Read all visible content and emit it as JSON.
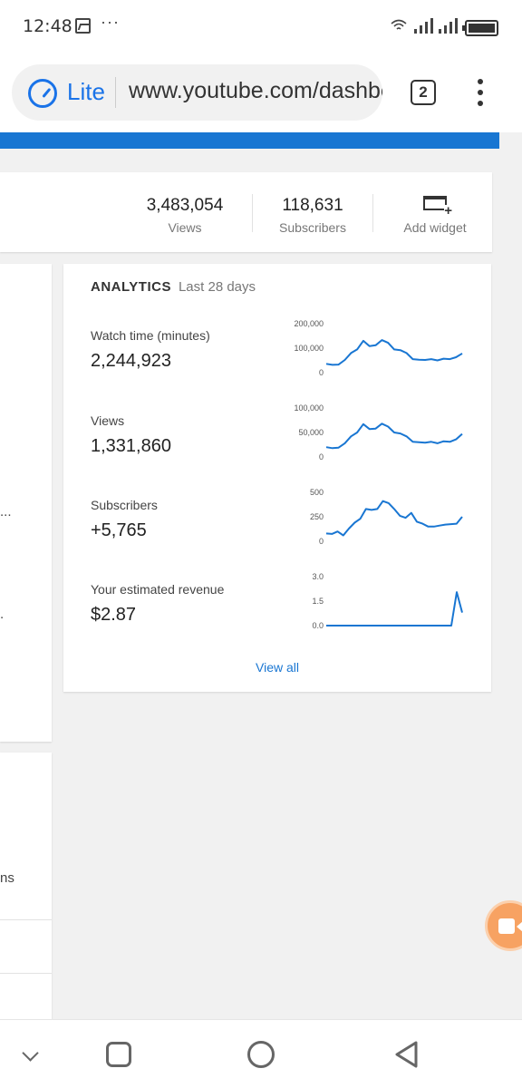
{
  "status_bar": {
    "time": "12:48",
    "more": "···",
    "icons": [
      "image-icon",
      "wifi-icon",
      "signal-icon",
      "signal-icon",
      "battery-icon"
    ]
  },
  "browser": {
    "lite_label": "Lite",
    "url": "www.youtube.com/dashboard",
    "tab_count": "2",
    "accent_color": "#1a73e8"
  },
  "stats": {
    "views": {
      "value": "3,483,054",
      "label": "Views"
    },
    "subscribers": {
      "value": "118,631",
      "label": "Subscribers"
    },
    "add_widget": {
      "label": "Add widget"
    }
  },
  "left_fragments": {
    "frag1": "...",
    "frag2": ".",
    "frag3": "ns"
  },
  "analytics": {
    "title": "ANALYTICS",
    "period": "Last 28 days",
    "view_all": "View all",
    "line_color": "#1976d2"
  },
  "chart_data": [
    {
      "type": "line",
      "title": "Watch time (minutes)",
      "value_label": "2,244,923",
      "ticks": [
        "200,000",
        "100,000",
        "0"
      ],
      "ylim": [
        0,
        200000
      ],
      "values": [
        36000,
        32000,
        33000,
        52000,
        80000,
        95000,
        130000,
        108000,
        112000,
        133000,
        122000,
        95000,
        92000,
        80000,
        55000,
        53000,
        52000,
        55000,
        50000,
        57000,
        55000,
        63000,
        78000
      ]
    },
    {
      "type": "line",
      "title": "Views",
      "value_label": "1,331,860",
      "ticks": [
        "100,000",
        "50,000",
        "0"
      ],
      "ylim": [
        0,
        100000
      ],
      "values": [
        20000,
        18000,
        19000,
        28000,
        42000,
        50000,
        67000,
        57000,
        58000,
        68000,
        62000,
        50000,
        48000,
        42000,
        31000,
        30000,
        29000,
        31000,
        28000,
        32000,
        31000,
        36000,
        47000
      ]
    },
    {
      "type": "line",
      "title": "Subscribers",
      "value_label": "+5,765",
      "ticks": [
        "500",
        "250",
        "0"
      ],
      "ylim": [
        0,
        500
      ],
      "values": [
        80,
        75,
        100,
        60,
        130,
        190,
        230,
        330,
        320,
        330,
        410,
        390,
        330,
        260,
        240,
        290,
        200,
        180,
        150,
        150,
        160,
        170,
        175,
        180,
        250
      ]
    },
    {
      "type": "line",
      "title": "Your estimated revenue",
      "value_label": "$2.87",
      "ticks": [
        "3.0",
        "1.5",
        "0.0"
      ],
      "ylim": [
        0,
        3
      ],
      "values": [
        0,
        0,
        0,
        0,
        0,
        0,
        0,
        0,
        0,
        0,
        0,
        0,
        0,
        0,
        0,
        0,
        0,
        0,
        0,
        0,
        0,
        0,
        0,
        0,
        2.05,
        0.8
      ]
    }
  ]
}
